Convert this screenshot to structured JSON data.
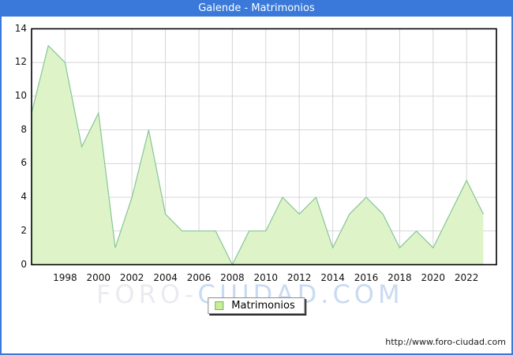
{
  "window": {
    "title": "Galende - Matrimonios"
  },
  "chart_data": {
    "type": "area",
    "title": "Galende - Matrimonios",
    "series_name": "Matrimonios",
    "x": [
      1996,
      1997,
      1998,
      1999,
      2000,
      2001,
      2002,
      2003,
      2004,
      2005,
      2006,
      2007,
      2008,
      2009,
      2010,
      2011,
      2012,
      2013,
      2014,
      2015,
      2016,
      2017,
      2018,
      2019,
      2020,
      2021,
      2022,
      2023
    ],
    "values": [
      9,
      13,
      12,
      7,
      9,
      1,
      4,
      8,
      3,
      2,
      2,
      2,
      0,
      2,
      2,
      4,
      3,
      4,
      1,
      3,
      4,
      3,
      1,
      2,
      1,
      3,
      5,
      3
    ],
    "xticks": [
      1998,
      2000,
      2002,
      2004,
      2006,
      2008,
      2010,
      2012,
      2014,
      2016,
      2018,
      2020,
      2022
    ],
    "yticks": [
      0,
      2,
      4,
      6,
      8,
      10,
      12,
      14
    ],
    "ylim": [
      0,
      14
    ],
    "grid": true,
    "legend_position": "bottom",
    "colors": {
      "area_fill": "#def4c8",
      "area_stroke": "#86c596",
      "gridline": "#d6d4d9",
      "plot_border": "#000000",
      "frame_blue": "#3a79d9",
      "title_text": "#ffffff"
    }
  },
  "legend": {
    "label": "Matrimonios"
  },
  "watermark": {
    "part1": "FORO-",
    "part2": "CIUDAD.COM"
  },
  "footer": {
    "url": "http://www.foro-ciudad.com"
  }
}
